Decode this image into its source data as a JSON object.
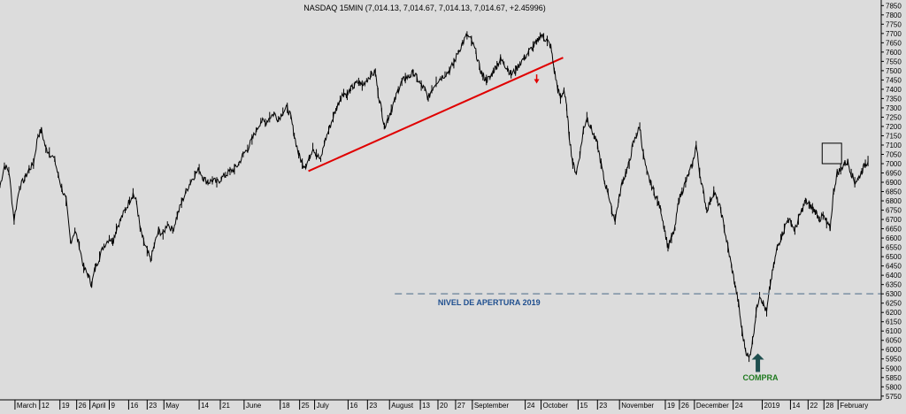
{
  "chart_data": {
    "type": "line",
    "title": "NASDAQ 15MIN (7,014.13, 7,014.67, 7,014.13, 7,014.67, +2.45996)",
    "yticks": [
      5750,
      5800,
      5850,
      5900,
      5950,
      6000,
      6050,
      6100,
      6150,
      6200,
      6250,
      6300,
      6350,
      6400,
      6450,
      6500,
      6550,
      6600,
      6650,
      6700,
      6750,
      6800,
      6850,
      6900,
      6950,
      7000,
      7050,
      7100,
      7150,
      7200,
      7250,
      7300,
      7350,
      7400,
      7450,
      7500,
      7550,
      7600,
      7650,
      7700,
      7750,
      7800,
      7850
    ],
    "ylim": [
      5730,
      7880
    ],
    "xlim": [
      0,
      1000
    ],
    "x_labels": [
      {
        "x": 17,
        "label": "March"
      },
      {
        "x": 45,
        "label": "12"
      },
      {
        "x": 68,
        "label": "19"
      },
      {
        "x": 87,
        "label": "26"
      },
      {
        "x": 102,
        "label": "April"
      },
      {
        "x": 124,
        "label": "9"
      },
      {
        "x": 146,
        "label": "16"
      },
      {
        "x": 167,
        "label": "23"
      },
      {
        "x": 186,
        "label": "May"
      },
      {
        "x": 226,
        "label": "14"
      },
      {
        "x": 250,
        "label": "21"
      },
      {
        "x": 277,
        "label": "June"
      },
      {
        "x": 318,
        "label": "18"
      },
      {
        "x": 340,
        "label": "25"
      },
      {
        "x": 357,
        "label": "July"
      },
      {
        "x": 395,
        "label": "16"
      },
      {
        "x": 417,
        "label": "23"
      },
      {
        "x": 442,
        "label": "August"
      },
      {
        "x": 477,
        "label": "13"
      },
      {
        "x": 497,
        "label": "20"
      },
      {
        "x": 517,
        "label": "27"
      },
      {
        "x": 536,
        "label": "September"
      },
      {
        "x": 596,
        "label": "24"
      },
      {
        "x": 614,
        "label": "October"
      },
      {
        "x": 656,
        "label": "15"
      },
      {
        "x": 678,
        "label": "23"
      },
      {
        "x": 703,
        "label": "November"
      },
      {
        "x": 755,
        "label": "19"
      },
      {
        "x": 771,
        "label": "26"
      },
      {
        "x": 788,
        "label": "December"
      },
      {
        "x": 832,
        "label": "24"
      },
      {
        "x": 865,
        "label": "2019"
      },
      {
        "x": 897,
        "label": "14"
      },
      {
        "x": 917,
        "label": "22"
      },
      {
        "x": 935,
        "label": "28"
      },
      {
        "x": 951,
        "label": "February"
      }
    ],
    "series": [
      {
        "color": "#000000",
        "points": [
          [
            0,
            6880
          ],
          [
            5,
            6990
          ],
          [
            10,
            6960
          ],
          [
            16,
            6700
          ],
          [
            22,
            6870
          ],
          [
            28,
            6920
          ],
          [
            33,
            6970
          ],
          [
            38,
            7000
          ],
          [
            43,
            7150
          ],
          [
            47,
            7180
          ],
          [
            52,
            7080
          ],
          [
            56,
            7060
          ],
          [
            62,
            7020
          ],
          [
            66,
            6940
          ],
          [
            70,
            6870
          ],
          [
            75,
            6800
          ],
          [
            80,
            6580
          ],
          [
            85,
            6640
          ],
          [
            90,
            6560
          ],
          [
            95,
            6440
          ],
          [
            100,
            6400
          ],
          [
            104,
            6350
          ],
          [
            108,
            6440
          ],
          [
            113,
            6500
          ],
          [
            118,
            6560
          ],
          [
            124,
            6600
          ],
          [
            128,
            6580
          ],
          [
            132,
            6650
          ],
          [
            137,
            6700
          ],
          [
            142,
            6750
          ],
          [
            147,
            6800
          ],
          [
            151,
            6840
          ],
          [
            155,
            6790
          ],
          [
            159,
            6650
          ],
          [
            163,
            6580
          ],
          [
            167,
            6530
          ],
          [
            171,
            6480
          ],
          [
            175,
            6560
          ],
          [
            180,
            6640
          ],
          [
            185,
            6620
          ],
          [
            190,
            6680
          ],
          [
            196,
            6640
          ],
          [
            201,
            6720
          ],
          [
            206,
            6790
          ],
          [
            211,
            6850
          ],
          [
            216,
            6900
          ],
          [
            221,
            6940
          ],
          [
            226,
            6970
          ],
          [
            231,
            6920
          ],
          [
            236,
            6900
          ],
          [
            241,
            6910
          ],
          [
            246,
            6900
          ],
          [
            251,
            6920
          ],
          [
            256,
            6940
          ],
          [
            261,
            6960
          ],
          [
            266,
            6970
          ],
          [
            271,
            7000
          ],
          [
            276,
            7050
          ],
          [
            281,
            7080
          ],
          [
            286,
            7130
          ],
          [
            291,
            7180
          ],
          [
            296,
            7230
          ],
          [
            301,
            7220
          ],
          [
            306,
            7250
          ],
          [
            311,
            7270
          ],
          [
            316,
            7240
          ],
          [
            321,
            7280
          ],
          [
            326,
            7300
          ],
          [
            330,
            7250
          ],
          [
            334,
            7150
          ],
          [
            339,
            7050
          ],
          [
            343,
            7000
          ],
          [
            347,
            6990
          ],
          [
            351,
            7030
          ],
          [
            355,
            7090
          ],
          [
            359,
            7050
          ],
          [
            364,
            7020
          ],
          [
            368,
            7110
          ],
          [
            373,
            7180
          ],
          [
            378,
            7250
          ],
          [
            382,
            7300
          ],
          [
            386,
            7350
          ],
          [
            390,
            7380
          ],
          [
            394,
            7370
          ],
          [
            398,
            7400
          ],
          [
            402,
            7420
          ],
          [
            407,
            7440
          ],
          [
            411,
            7420
          ],
          [
            416,
            7450
          ],
          [
            421,
            7480
          ],
          [
            426,
            7490
          ],
          [
            429,
            7380
          ],
          [
            433,
            7290
          ],
          [
            436,
            7200
          ],
          [
            440,
            7240
          ],
          [
            444,
            7290
          ],
          [
            448,
            7340
          ],
          [
            452,
            7400
          ],
          [
            456,
            7440
          ],
          [
            460,
            7460
          ],
          [
            465,
            7470
          ],
          [
            469,
            7490
          ],
          [
            473,
            7460
          ],
          [
            478,
            7420
          ],
          [
            482,
            7400
          ],
          [
            486,
            7350
          ],
          [
            490,
            7400
          ],
          [
            495,
            7440
          ],
          [
            500,
            7460
          ],
          [
            505,
            7480
          ],
          [
            510,
            7500
          ],
          [
            515,
            7540
          ],
          [
            520,
            7600
          ],
          [
            525,
            7650
          ],
          [
            530,
            7690
          ],
          [
            535,
            7660
          ],
          [
            540,
            7600
          ],
          [
            544,
            7520
          ],
          [
            548,
            7470
          ],
          [
            552,
            7450
          ],
          [
            556,
            7460
          ],
          [
            560,
            7500
          ],
          [
            564,
            7530
          ],
          [
            568,
            7560
          ],
          [
            572,
            7540
          ],
          [
            576,
            7510
          ],
          [
            580,
            7480
          ],
          [
            585,
            7500
          ],
          [
            590,
            7540
          ],
          [
            595,
            7570
          ],
          [
            600,
            7600
          ],
          [
            605,
            7630
          ],
          [
            609,
            7650
          ],
          [
            613,
            7690
          ],
          [
            617,
            7680
          ],
          [
            621,
            7660
          ],
          [
            625,
            7630
          ],
          [
            629,
            7500
          ],
          [
            633,
            7400
          ],
          [
            636,
            7350
          ],
          [
            640,
            7400
          ],
          [
            643,
            7300
          ],
          [
            646,
            7150
          ],
          [
            650,
            7000
          ],
          [
            654,
            6950
          ],
          [
            658,
            7050
          ],
          [
            662,
            7180
          ],
          [
            666,
            7250
          ],
          [
            670,
            7200
          ],
          [
            674,
            7150
          ],
          [
            678,
            7100
          ],
          [
            682,
            7000
          ],
          [
            686,
            6900
          ],
          [
            690,
            6850
          ],
          [
            694,
            6750
          ],
          [
            698,
            6700
          ],
          [
            702,
            6800
          ],
          [
            706,
            6900
          ],
          [
            710,
            6950
          ],
          [
            714,
            7000
          ],
          [
            718,
            7100
          ],
          [
            722,
            7150
          ],
          [
            726,
            7200
          ],
          [
            730,
            7050
          ],
          [
            734,
            6950
          ],
          [
            738,
            6900
          ],
          [
            742,
            6850
          ],
          [
            746,
            6800
          ],
          [
            750,
            6750
          ],
          [
            754,
            6650
          ],
          [
            758,
            6550
          ],
          [
            762,
            6600
          ],
          [
            766,
            6650
          ],
          [
            770,
            6800
          ],
          [
            774,
            6850
          ],
          [
            778,
            6900
          ],
          [
            782,
            6950
          ],
          [
            786,
            7000
          ],
          [
            790,
            7100
          ],
          [
            794,
            6950
          ],
          [
            798,
            6850
          ],
          [
            802,
            6750
          ],
          [
            806,
            6800
          ],
          [
            810,
            6850
          ],
          [
            814,
            6800
          ],
          [
            818,
            6750
          ],
          [
            822,
            6650
          ],
          [
            826,
            6550
          ],
          [
            830,
            6450
          ],
          [
            834,
            6350
          ],
          [
            838,
            6250
          ],
          [
            842,
            6100
          ],
          [
            846,
            6000
          ],
          [
            850,
            5950
          ],
          [
            854,
            6050
          ],
          [
            858,
            6200
          ],
          [
            862,
            6300
          ],
          [
            866,
            6250
          ],
          [
            870,
            6200
          ],
          [
            874,
            6350
          ],
          [
            878,
            6450
          ],
          [
            882,
            6550
          ],
          [
            886,
            6600
          ],
          [
            890,
            6650
          ],
          [
            894,
            6700
          ],
          [
            898,
            6680
          ],
          [
            902,
            6640
          ],
          [
            906,
            6700
          ],
          [
            910,
            6750
          ],
          [
            914,
            6800
          ],
          [
            918,
            6780
          ],
          [
            922,
            6760
          ],
          [
            926,
            6740
          ],
          [
            930,
            6700
          ],
          [
            934,
            6720
          ],
          [
            938,
            6680
          ],
          [
            942,
            6650
          ],
          [
            946,
            6850
          ],
          [
            950,
            6950
          ],
          [
            954,
            6970
          ],
          [
            958,
            7000
          ],
          [
            962,
            7010
          ],
          [
            966,
            6950
          ],
          [
            970,
            6900
          ],
          [
            974,
            6920
          ],
          [
            978,
            6960
          ],
          [
            982,
            7000
          ],
          [
            985,
            7014
          ]
        ]
      }
    ],
    "trendline": {
      "color": "#e00000",
      "from": [
        350,
        6960
      ],
      "to": [
        639,
        7570
      ]
    },
    "hline": {
      "y": 6300,
      "x_from": 448,
      "color": "#7a8fa3"
    },
    "annotations": {
      "nivel": {
        "text": "NIVEL DE APERTURA 2019",
        "x": 555,
        "y": 6240,
        "color": "#1f4f8f"
      },
      "compra": {
        "text": "COMPRA",
        "x": 863,
        "y": 5835,
        "color": "#1f7a1f"
      },
      "compra_arrow": {
        "x": 860,
        "y_base": 5880,
        "y_tip": 5980,
        "color": "#1f4f4f"
      },
      "red_arrow": {
        "x": 609,
        "y_base": 7480,
        "y_tip": 7440,
        "color": "#e00000"
      },
      "box": {
        "x1": 933,
        "x2": 955,
        "y1": 7000,
        "y2": 7110
      }
    },
    "grid": false
  }
}
